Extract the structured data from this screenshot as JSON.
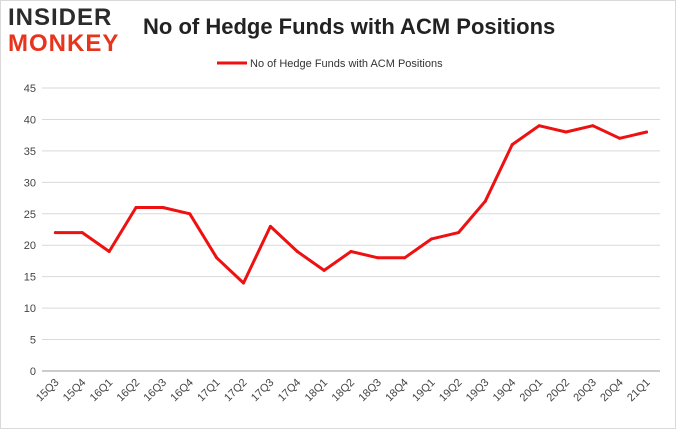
{
  "logo": {
    "line1": "INSIDER",
    "line2": "MONKEY"
  },
  "chart_data": {
    "type": "line",
    "title": "No of Hedge Funds with ACM Positions",
    "xlabel": "",
    "ylabel": "",
    "ylim": [
      0,
      45
    ],
    "yticks": [
      0,
      5,
      10,
      15,
      20,
      25,
      30,
      35,
      40,
      45
    ],
    "grid": true,
    "legend_position": "top-center",
    "categories": [
      "15Q3",
      "15Q4",
      "16Q1",
      "16Q2",
      "16Q3",
      "16Q4",
      "17Q1",
      "17Q2",
      "17Q3",
      "17Q4",
      "18Q1",
      "18Q2",
      "18Q3",
      "18Q4",
      "19Q1",
      "19Q2",
      "19Q3",
      "19Q4",
      "20Q1",
      "20Q2",
      "20Q3",
      "20Q4",
      "21Q1"
    ],
    "series": [
      {
        "name": "No of Hedge Funds with ACM Positions",
        "color": "#ee1111",
        "values": [
          22,
          22,
          19,
          26,
          26,
          25,
          18,
          14,
          23,
          19,
          16,
          19,
          18,
          18,
          21,
          22,
          27,
          36,
          39,
          38,
          39,
          37,
          38
        ]
      }
    ]
  }
}
